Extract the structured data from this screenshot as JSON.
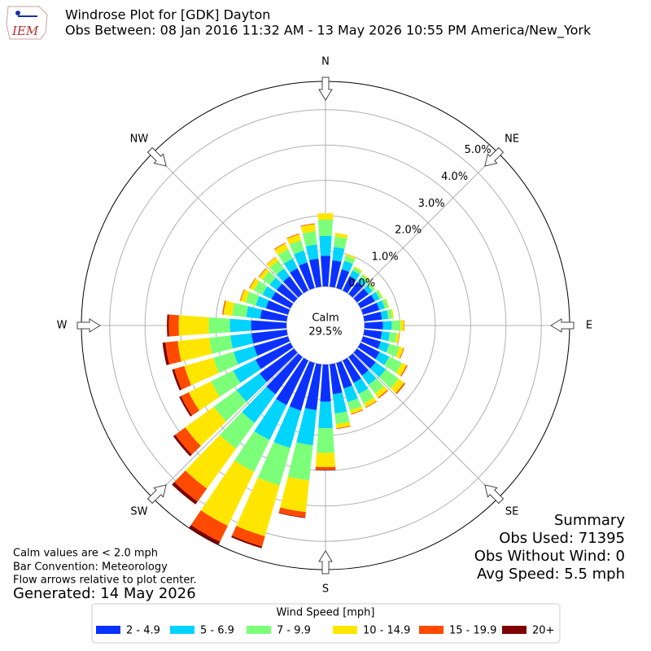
{
  "chart_data": {
    "type": "windrose",
    "title": "Windrose Plot for [GDK] Dayton",
    "subtitle": "Obs Between: 08 Jan 2016 11:32 AM - 13 May 2026 10:55 PM America/New_York",
    "logo_text": "IEM",
    "x": [
      0,
      10,
      20,
      30,
      40,
      50,
      60,
      70,
      80,
      90,
      100,
      110,
      120,
      130,
      140,
      150,
      160,
      170,
      180,
      190,
      200,
      210,
      220,
      230,
      240,
      250,
      260,
      270,
      280,
      290,
      300,
      310,
      320,
      330,
      340,
      350
    ],
    "xticks": [
      {
        "value": 0,
        "label": "N"
      },
      {
        "value": 45,
        "label": "NE"
      },
      {
        "value": 90,
        "label": "E"
      },
      {
        "value": 135,
        "label": "SE"
      },
      {
        "value": 180,
        "label": "S"
      },
      {
        "value": 225,
        "label": "SW"
      },
      {
        "value": 270,
        "label": "W"
      },
      {
        "value": 315,
        "label": "NW"
      }
    ],
    "rlim": [
      0,
      5.8
    ],
    "rticks": [
      {
        "value": 0,
        "label": "0.0%"
      },
      {
        "value": 1,
        "label": "1.0%"
      },
      {
        "value": 2,
        "label": "2.0%"
      },
      {
        "value": 3,
        "label": "3.0%"
      },
      {
        "value": 4,
        "label": "4.0%"
      },
      {
        "value": 5,
        "label": "5.0%"
      }
    ],
    "grid": true,
    "calm": {
      "label": "Calm",
      "value": 29.5,
      "value_label": "29.5%"
    },
    "legend_title": "Wind Speed [mph]",
    "series": [
      {
        "name": "2 - 4.9",
        "color": "#0a31ff",
        "values": [
          0.87,
          0.75,
          0.55,
          0.45,
          0.42,
          0.4,
          0.45,
          0.48,
          0.5,
          0.52,
          0.5,
          0.52,
          0.6,
          0.65,
          0.65,
          0.7,
          0.75,
          0.85,
          1.05,
          1.3,
          1.4,
          1.4,
          1.3,
          1.2,
          1.1,
          1.0,
          1.0,
          1.0,
          0.75,
          0.65,
          0.6,
          0.6,
          0.62,
          0.7,
          0.75,
          0.8
        ]
      },
      {
        "name": "5 - 6.9",
        "color": "#00d4ff",
        "values": [
          0.56,
          0.38,
          0.25,
          0.18,
          0.15,
          0.14,
          0.15,
          0.16,
          0.18,
          0.25,
          0.22,
          0.25,
          0.3,
          0.35,
          0.32,
          0.35,
          0.4,
          0.55,
          0.75,
          1.0,
          1.1,
          1.1,
          1.0,
          0.8,
          0.7,
          0.6,
          0.6,
          0.6,
          0.4,
          0.3,
          0.28,
          0.25,
          0.27,
          0.3,
          0.35,
          0.4
        ]
      },
      {
        "name": "7 - 9.9",
        "color": "#7cff79",
        "values": [
          0.46,
          0.3,
          0.15,
          0.1,
          0.1,
          0.08,
          0.08,
          0.1,
          0.12,
          0.25,
          0.2,
          0.3,
          0.4,
          0.45,
          0.3,
          0.3,
          0.25,
          0.3,
          0.7,
          1.0,
          1.1,
          1.0,
          0.9,
          0.8,
          0.7,
          0.6,
          0.6,
          0.6,
          0.4,
          0.3,
          0.27,
          0.25,
          0.27,
          0.3,
          0.3,
          0.38
        ]
      },
      {
        "name": "10 - 14.9",
        "color": "#ffe600",
        "values": [
          0.18,
          0.1,
          0.05,
          0.03,
          0.03,
          0.02,
          0.02,
          0.03,
          0.04,
          0.1,
          0.08,
          0.12,
          0.15,
          0.2,
          0.15,
          0.12,
          0.1,
          0.12,
          0.4,
          0.9,
          1.5,
          1.7,
          1.4,
          1.0,
          0.7,
          0.85,
          0.9,
          0.85,
          0.25,
          0.15,
          0.13,
          0.12,
          0.13,
          0.18,
          0.18,
          0.2
        ]
      },
      {
        "name": "15 - 19.9",
        "color": "#ff4a00",
        "values": [
          0,
          0,
          0,
          0,
          0,
          0,
          0,
          0,
          0,
          0.01,
          0.01,
          0.02,
          0.03,
          0.04,
          0.03,
          0.02,
          0.02,
          0.02,
          0.08,
          0.15,
          0.3,
          0.5,
          0.45,
          0.35,
          0.25,
          0.3,
          0.35,
          0.28,
          0.03,
          0.02,
          0.02,
          0.02,
          0.01,
          0.02,
          0.02,
          0.02
        ]
      },
      {
        "name": "20+",
        "color": "#7f0000",
        "values": [
          0,
          0,
          0,
          0,
          0,
          0,
          0,
          0,
          0,
          0,
          0,
          0,
          0,
          0,
          0,
          0,
          0,
          0,
          0.01,
          0.02,
          0.05,
          0.1,
          0.1,
          0.07,
          0.05,
          0.06,
          0.08,
          0.05,
          0,
          0,
          0,
          0,
          0,
          0,
          0,
          0
        ]
      }
    ],
    "notes": [
      "Calm values are < 2.0 mph",
      "Bar Convention: Meteorology",
      "Flow arrows relative to plot center."
    ],
    "generated": "Generated: 14 May 2026",
    "summary": [
      "Summary",
      "Obs Used: 71395",
      "Obs Without Wind: 0",
      "Avg Speed: 5.5 mph"
    ]
  }
}
